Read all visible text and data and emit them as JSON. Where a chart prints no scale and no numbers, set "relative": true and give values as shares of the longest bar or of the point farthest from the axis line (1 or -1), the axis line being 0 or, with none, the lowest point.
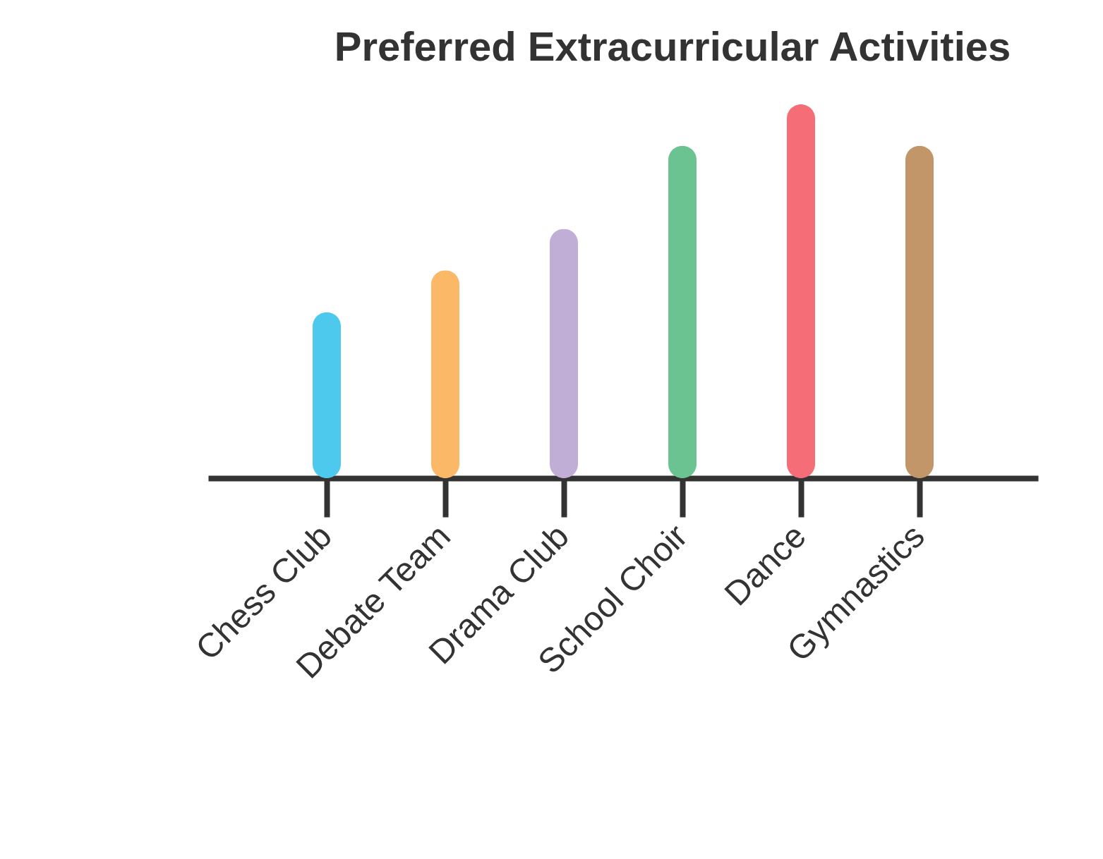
{
  "chart_data": {
    "type": "bar",
    "title": "Preferred Extracurricular Activities",
    "categories": [
      "Chess Club",
      "Debate Team",
      "Drama Club",
      "School Choir",
      "Dance",
      "Gymnastics"
    ],
    "values": [
      0.444,
      0.556,
      0.667,
      0.889,
      1,
      0.889
    ],
    "colors": [
      "#4dc9ed",
      "#fbb867",
      "#c0aed6",
      "#6bc391",
      "#f46d77",
      "#c29668"
    ],
    "relative": true
  }
}
